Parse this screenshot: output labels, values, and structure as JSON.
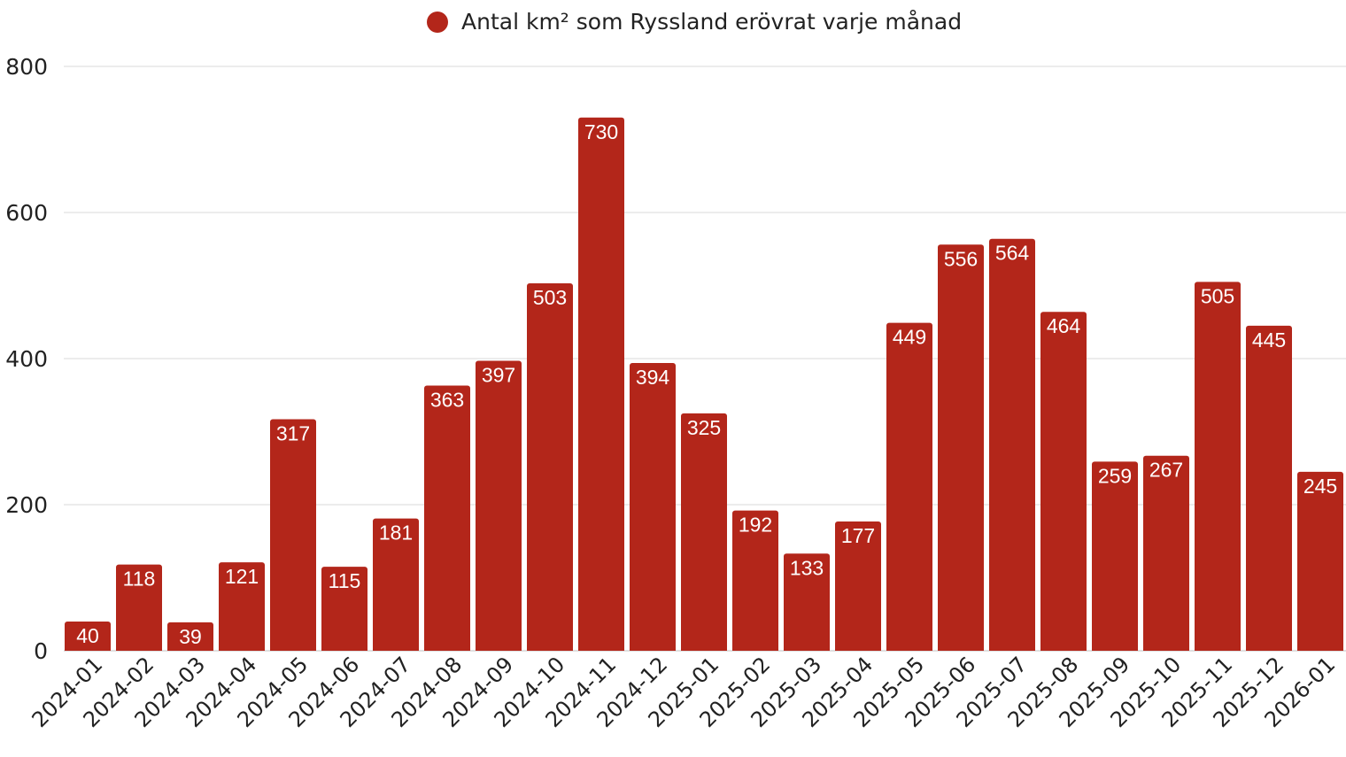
{
  "chart_data": {
    "type": "bar",
    "categories": [
      "2024-01",
      "2024-02",
      "2024-03",
      "2024-04",
      "2024-05",
      "2024-06",
      "2024-07",
      "2024-08",
      "2024-09",
      "2024-10",
      "2024-11",
      "2024-12",
      "2025-01",
      "2025-02",
      "2025-03",
      "2025-04",
      "2025-05",
      "2025-06",
      "2025-07",
      "2025-08",
      "2025-09",
      "2025-10",
      "2025-11",
      "2025-12",
      "2026-01"
    ],
    "series": [
      {
        "name": "Antal km² som Ryssland erövrat varje månad",
        "values": [
          40,
          118,
          39,
          121,
          317,
          115,
          181,
          363,
          397,
          503,
          730,
          394,
          325,
          192,
          133,
          177,
          449,
          556,
          564,
          464,
          259,
          267,
          505,
          445,
          245
        ],
        "color": "#b3261a"
      }
    ],
    "ylim": [
      0,
      800
    ],
    "yticks": [
      0,
      200,
      400,
      600,
      800
    ],
    "grid": true,
    "legend_position": "top-center",
    "data_labels": true
  }
}
